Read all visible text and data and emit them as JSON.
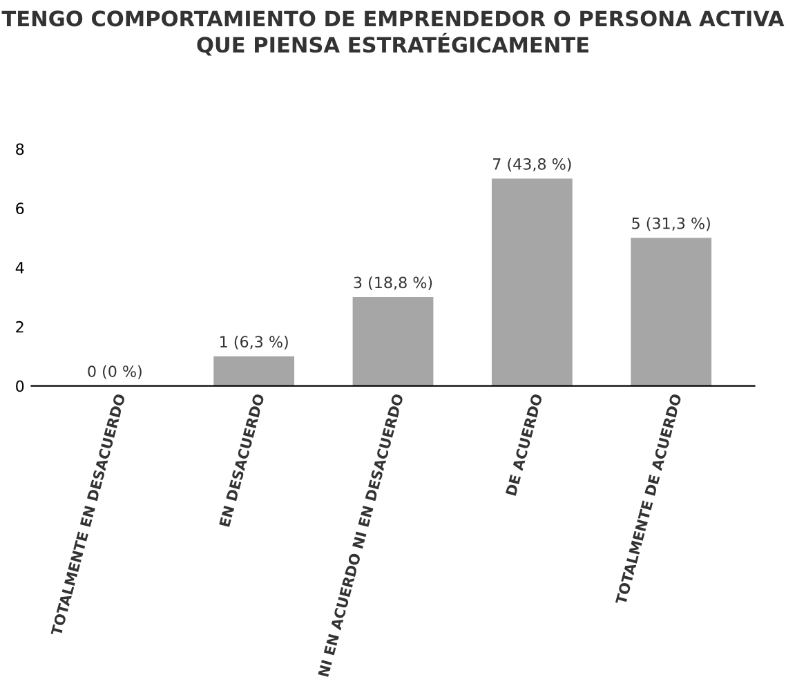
{
  "chart_data": {
    "type": "bar",
    "title": "TENGO COMPORTAMIENTO DE EMPRENDEDOR O PERSONA ACTIVA QUE PIENSA ESTRATÉGICAMENTE",
    "categories": [
      "TOTALMENTE EN DESACUERDO",
      "EN DESACUERDO",
      "NI EN ACUERDO NI EN DESACUERDO",
      "DE ACUERDO",
      "TOTALMENTE DE ACUERDO"
    ],
    "values": [
      0,
      1,
      3,
      7,
      5
    ],
    "value_labels": [
      "0 (0 %)",
      "1 (6,3 %)",
      "3 (18,8 %)",
      "7 (43,8 %)",
      "5 (31,3 %)"
    ],
    "color": "#a6a6a6",
    "ylim": [
      0,
      8
    ],
    "yticks": [
      0,
      2,
      4,
      6,
      8
    ],
    "grid": false
  }
}
